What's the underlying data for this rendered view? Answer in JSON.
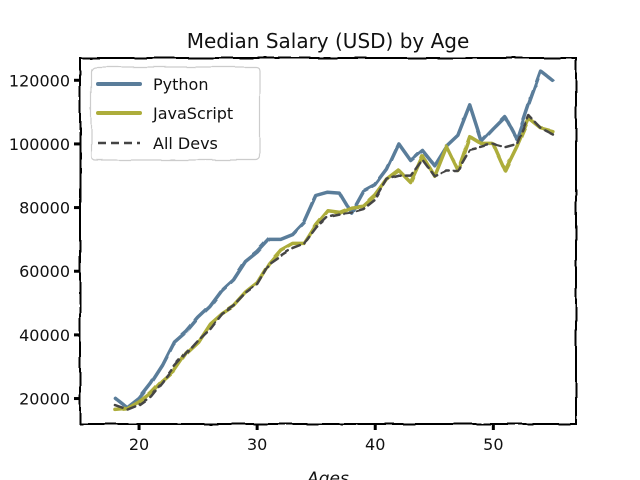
{
  "chart_data": {
    "type": "line",
    "title": "Median Salary (USD) by Age",
    "xlabel": "Ages",
    "ylabel": "",
    "xlim": [
      15,
      57
    ],
    "ylim": [
      12000,
      127000
    ],
    "xticks": [
      20,
      30,
      40,
      50
    ],
    "yticks": [
      20000,
      40000,
      60000,
      80000,
      100000,
      120000
    ],
    "grid": false,
    "legend_position": "top-left",
    "x": [
      18,
      19,
      20,
      21,
      22,
      23,
      24,
      25,
      26,
      27,
      28,
      29,
      30,
      31,
      32,
      33,
      34,
      35,
      36,
      37,
      38,
      39,
      40,
      41,
      42,
      43,
      44,
      45,
      46,
      47,
      48,
      49,
      50,
      51,
      52,
      53,
      54,
      55
    ],
    "series": [
      {
        "name": "Python",
        "color": "#5a7d9a",
        "style": "solid",
        "values": [
          20046,
          17100,
          20000,
          24744,
          30500,
          37732,
          41000,
          45372,
          48876,
          53850,
          57287,
          63016,
          65998,
          70003,
          70000,
          71496,
          75370,
          83640,
          84666,
          84392,
          78254,
          85000,
          87038,
          91991,
          100000,
          94796,
          97962,
          93302,
          99240,
          102736,
          112285,
          100771,
          104708,
          108423,
          101407,
          112542,
          122870,
          120000
        ]
      },
      {
        "name": "JavaScript",
        "color": "#adad3b",
        "style": "solid",
        "values": [
          16446,
          16791,
          18942,
          21780,
          25704,
          29000,
          34372,
          37810,
          43515,
          46823,
          49293,
          53437,
          56373,
          62375,
          66674,
          68745,
          68746,
          74583,
          79000,
          78508,
          79996,
          80403,
          83820,
          88833,
          91660,
          87892,
          96243,
          90000,
          99313,
          91660,
          102264,
          100000,
          100000,
          91660,
          99240,
          108000,
          105000,
          104000
        ]
      },
      {
        "name": "All Devs",
        "color": "#444444",
        "style": "dashed",
        "values": [
          17784,
          16500,
          18012,
          20628,
          25206,
          30252,
          34368,
          38496,
          42000,
          46752,
          49320,
          53200,
          56000,
          62316,
          64928,
          67317,
          68748,
          73752,
          77232,
          78000,
          78508,
          79536,
          82488,
          88935,
          90000,
          90056,
          95000,
          90000,
          91633,
          91660,
          98150,
          98964,
          100000,
          98988,
          100000,
          108923,
          105000,
          103117
        ]
      }
    ]
  }
}
